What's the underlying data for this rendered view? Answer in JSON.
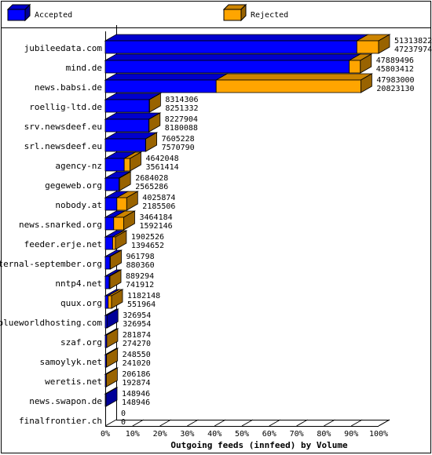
{
  "chart_data": {
    "type": "bar3d",
    "xlabel": "Outgoing feeds (innfeed) by Volume",
    "categories": [
      "jubileedata.com",
      "mind.de",
      "news.babsi.de",
      "roellig-ltd.de",
      "srv.newsdeef.eu",
      "srl.newsdeef.eu",
      "agency-nz",
      "gegeweb.org",
      "nobody.at",
      "news.snarked.org",
      "feeder.erje.net",
      "eternal-september.org",
      "nntp4.net",
      "quux.org",
      "blueworldhosting.com",
      "szaf.org",
      "samoylyk.net",
      "weretis.net",
      "news.swapon.de",
      "finalfrontier.ch"
    ],
    "totals": [
      51313822,
      47889496,
      47983000,
      8314306,
      8227904,
      7605228,
      4642048,
      2684028,
      4025874,
      3464184,
      1902526,
      961798,
      889294,
      1182148,
      326954,
      281874,
      248550,
      206186,
      148946,
      0
    ],
    "series": [
      {
        "name": "Accepted",
        "color": "#0000ff",
        "values": [
          47237974,
          45803412,
          20823130,
          8251332,
          8180088,
          7570790,
          3561414,
          2565286,
          2185506,
          1592146,
          1394652,
          880360,
          741912,
          551964,
          326954,
          274270,
          241020,
          192874,
          148946,
          0
        ]
      },
      {
        "name": "Rejected",
        "color": "#ffa500"
      }
    ],
    "xlim": [
      0,
      100
    ],
    "xticks": [
      {
        "value": 0,
        "label": "0%"
      },
      {
        "value": 10,
        "label": "10%"
      },
      {
        "value": 20,
        "label": "20%"
      },
      {
        "value": 30,
        "label": "30%"
      },
      {
        "value": 40,
        "label": "40%"
      },
      {
        "value": 50,
        "label": "50%"
      },
      {
        "value": 60,
        "label": "60%"
      },
      {
        "value": 70,
        "label": "70%"
      },
      {
        "value": 80,
        "label": "80%"
      },
      {
        "value": 90,
        "label": "90%"
      },
      {
        "value": 100,
        "label": "100%"
      }
    ]
  }
}
